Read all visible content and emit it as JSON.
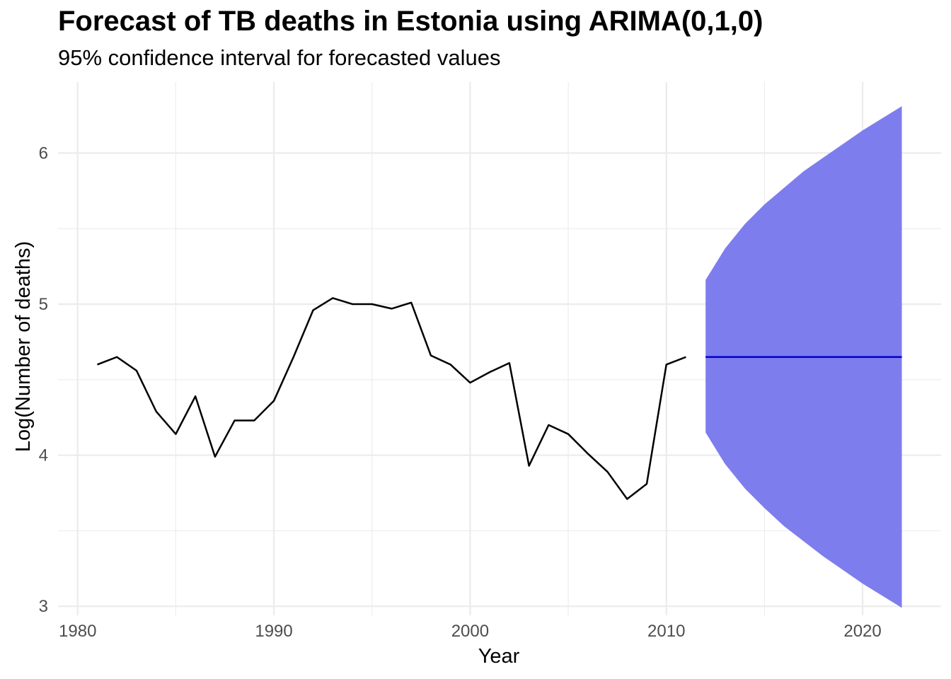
{
  "chart_data": {
    "type": "line",
    "title": "Forecast of TB deaths in Estonia using ARIMA(0,1,0)",
    "subtitle": "95% confidence interval for forecasted values",
    "xlabel": "Year",
    "ylabel": "Log(Number of deaths)",
    "xlim": [
      1979,
      2024
    ],
    "ylim": [
      2.94,
      6.47
    ],
    "x_ticks": [
      1980,
      1990,
      2000,
      2010,
      2020
    ],
    "y_ticks": [
      3,
      4,
      5,
      6
    ],
    "grid": true,
    "series": [
      {
        "color": "#000000",
        "x": [
          1981,
          1982,
          1983,
          1984,
          1985,
          1986,
          1987,
          1988,
          1989,
          1990,
          1991,
          1992,
          1993,
          1994,
          1995,
          1996,
          1997,
          1998,
          1999,
          2000,
          2001,
          2002,
          2003,
          2004,
          2005,
          2006,
          2007,
          2008,
          2009,
          2010,
          2011
        ],
        "y": [
          4.6,
          4.65,
          4.56,
          4.29,
          4.14,
          4.39,
          3.99,
          4.23,
          4.23,
          4.36,
          4.65,
          4.96,
          5.04,
          5.0,
          5.0,
          4.97,
          5.01,
          4.66,
          4.6,
          4.48,
          4.55,
          4.61,
          3.93,
          4.2,
          4.14,
          4.01,
          3.89,
          3.71,
          3.81,
          4.6,
          4.65
        ]
      },
      {
        "color": "#0000cd",
        "x": [
          2012,
          2013,
          2014,
          2015,
          2016,
          2017,
          2018,
          2019,
          2020,
          2021,
          2022
        ],
        "y": [
          4.65,
          4.65,
          4.65,
          4.65,
          4.65,
          4.65,
          4.65,
          4.65,
          4.65,
          4.65,
          4.65
        ]
      }
    ],
    "interval": {
      "color": "#7d7dee",
      "x": [
        2012,
        2013,
        2014,
        2015,
        2016,
        2017,
        2018,
        2019,
        2020,
        2021,
        2022
      ],
      "lower": [
        4.15,
        3.94,
        3.78,
        3.65,
        3.53,
        3.43,
        3.33,
        3.24,
        3.15,
        3.07,
        2.99
      ],
      "upper": [
        5.16,
        5.37,
        5.53,
        5.66,
        5.77,
        5.88,
        5.97,
        6.06,
        6.15,
        6.23,
        6.31
      ]
    }
  }
}
